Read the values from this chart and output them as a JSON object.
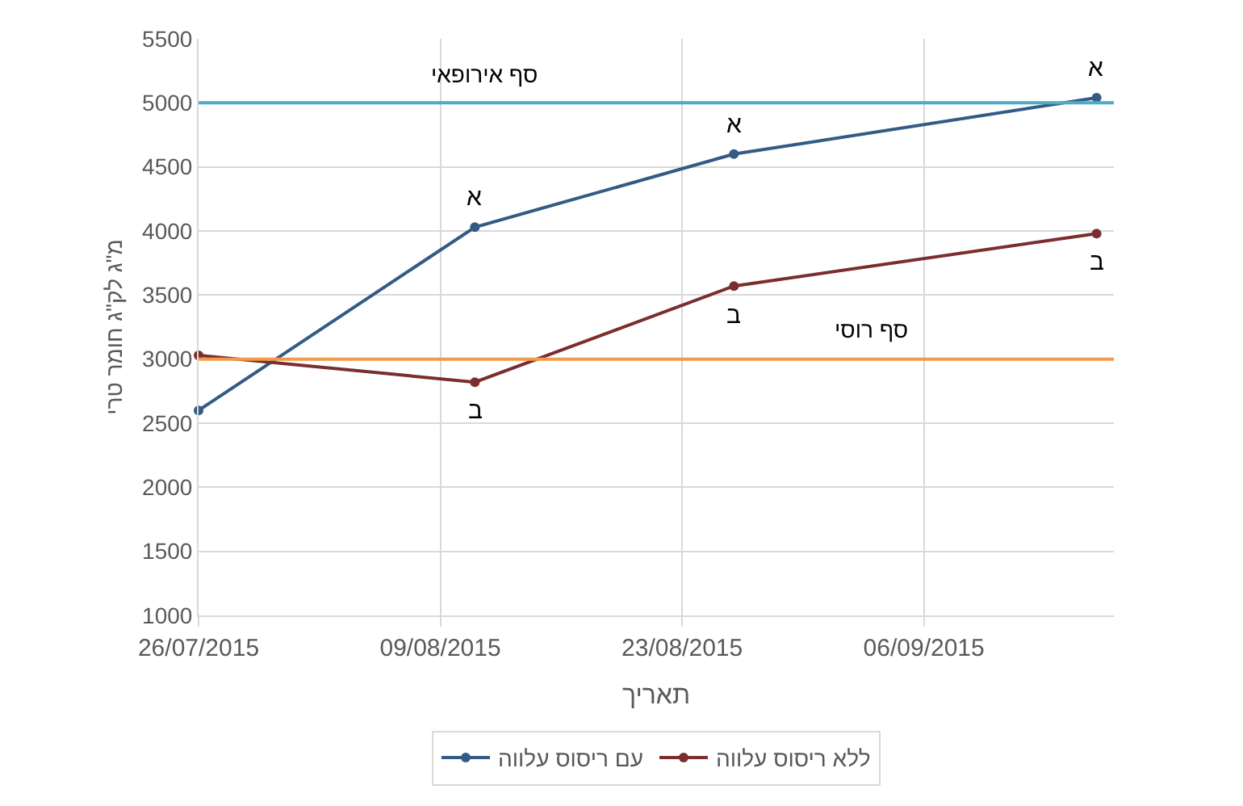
{
  "chart_data": {
    "type": "line",
    "xlabel": "תאריך",
    "ylabel": "מ\"ג לק\"ג חומר טרי",
    "x": [
      "2015-07-26",
      "2015-08-11",
      "2015-08-26",
      "2015-09-16"
    ],
    "series": [
      {
        "name": "עם ריסוס עלווה",
        "color": "#335b84",
        "values": [
          2600,
          4030,
          4600,
          5040
        ]
      },
      {
        "name": "ללא ריסוס עלווה",
        "color": "#7b2e2e",
        "values": [
          3030,
          2820,
          3570,
          3980
        ]
      }
    ],
    "ref_lines": [
      {
        "axis": "y",
        "value": 5000,
        "label": "סף אירופאי",
        "color": "#4bacc6"
      },
      {
        "axis": "y",
        "value": 3000,
        "label": "סף רוסי",
        "color": "#f29a4a"
      }
    ],
    "annotations": [
      {
        "text": "א",
        "x": "2015-08-11",
        "y": 4030
      },
      {
        "text": "א",
        "x": "2015-08-26",
        "y": 4600
      },
      {
        "text": "א",
        "x": "2015-09-16",
        "y": 5040
      },
      {
        "text": "ב",
        "x": "2015-08-11",
        "y": 2820
      },
      {
        "text": "ב",
        "x": "2015-08-26",
        "y": 3570
      },
      {
        "text": "ב",
        "x": "2015-09-16",
        "y": 3980
      }
    ],
    "xlim": [
      "2015-07-26",
      "2015-09-17"
    ],
    "xticks": [
      {
        "value": "2015-07-26",
        "label": "26/07/2015"
      },
      {
        "value": "2015-08-09",
        "label": "09/08/2015"
      },
      {
        "value": "2015-08-23",
        "label": "23/08/2015"
      },
      {
        "value": "2015-09-06",
        "label": "06/09/2015"
      }
    ],
    "ylim": [
      1000,
      5500
    ],
    "yticks": [
      1000,
      1500,
      2000,
      2500,
      3000,
      3500,
      4000,
      4500,
      5000,
      5500
    ],
    "grid": true,
    "legend": "bottom",
    "marker": "circle",
    "line_style": "solid"
  }
}
